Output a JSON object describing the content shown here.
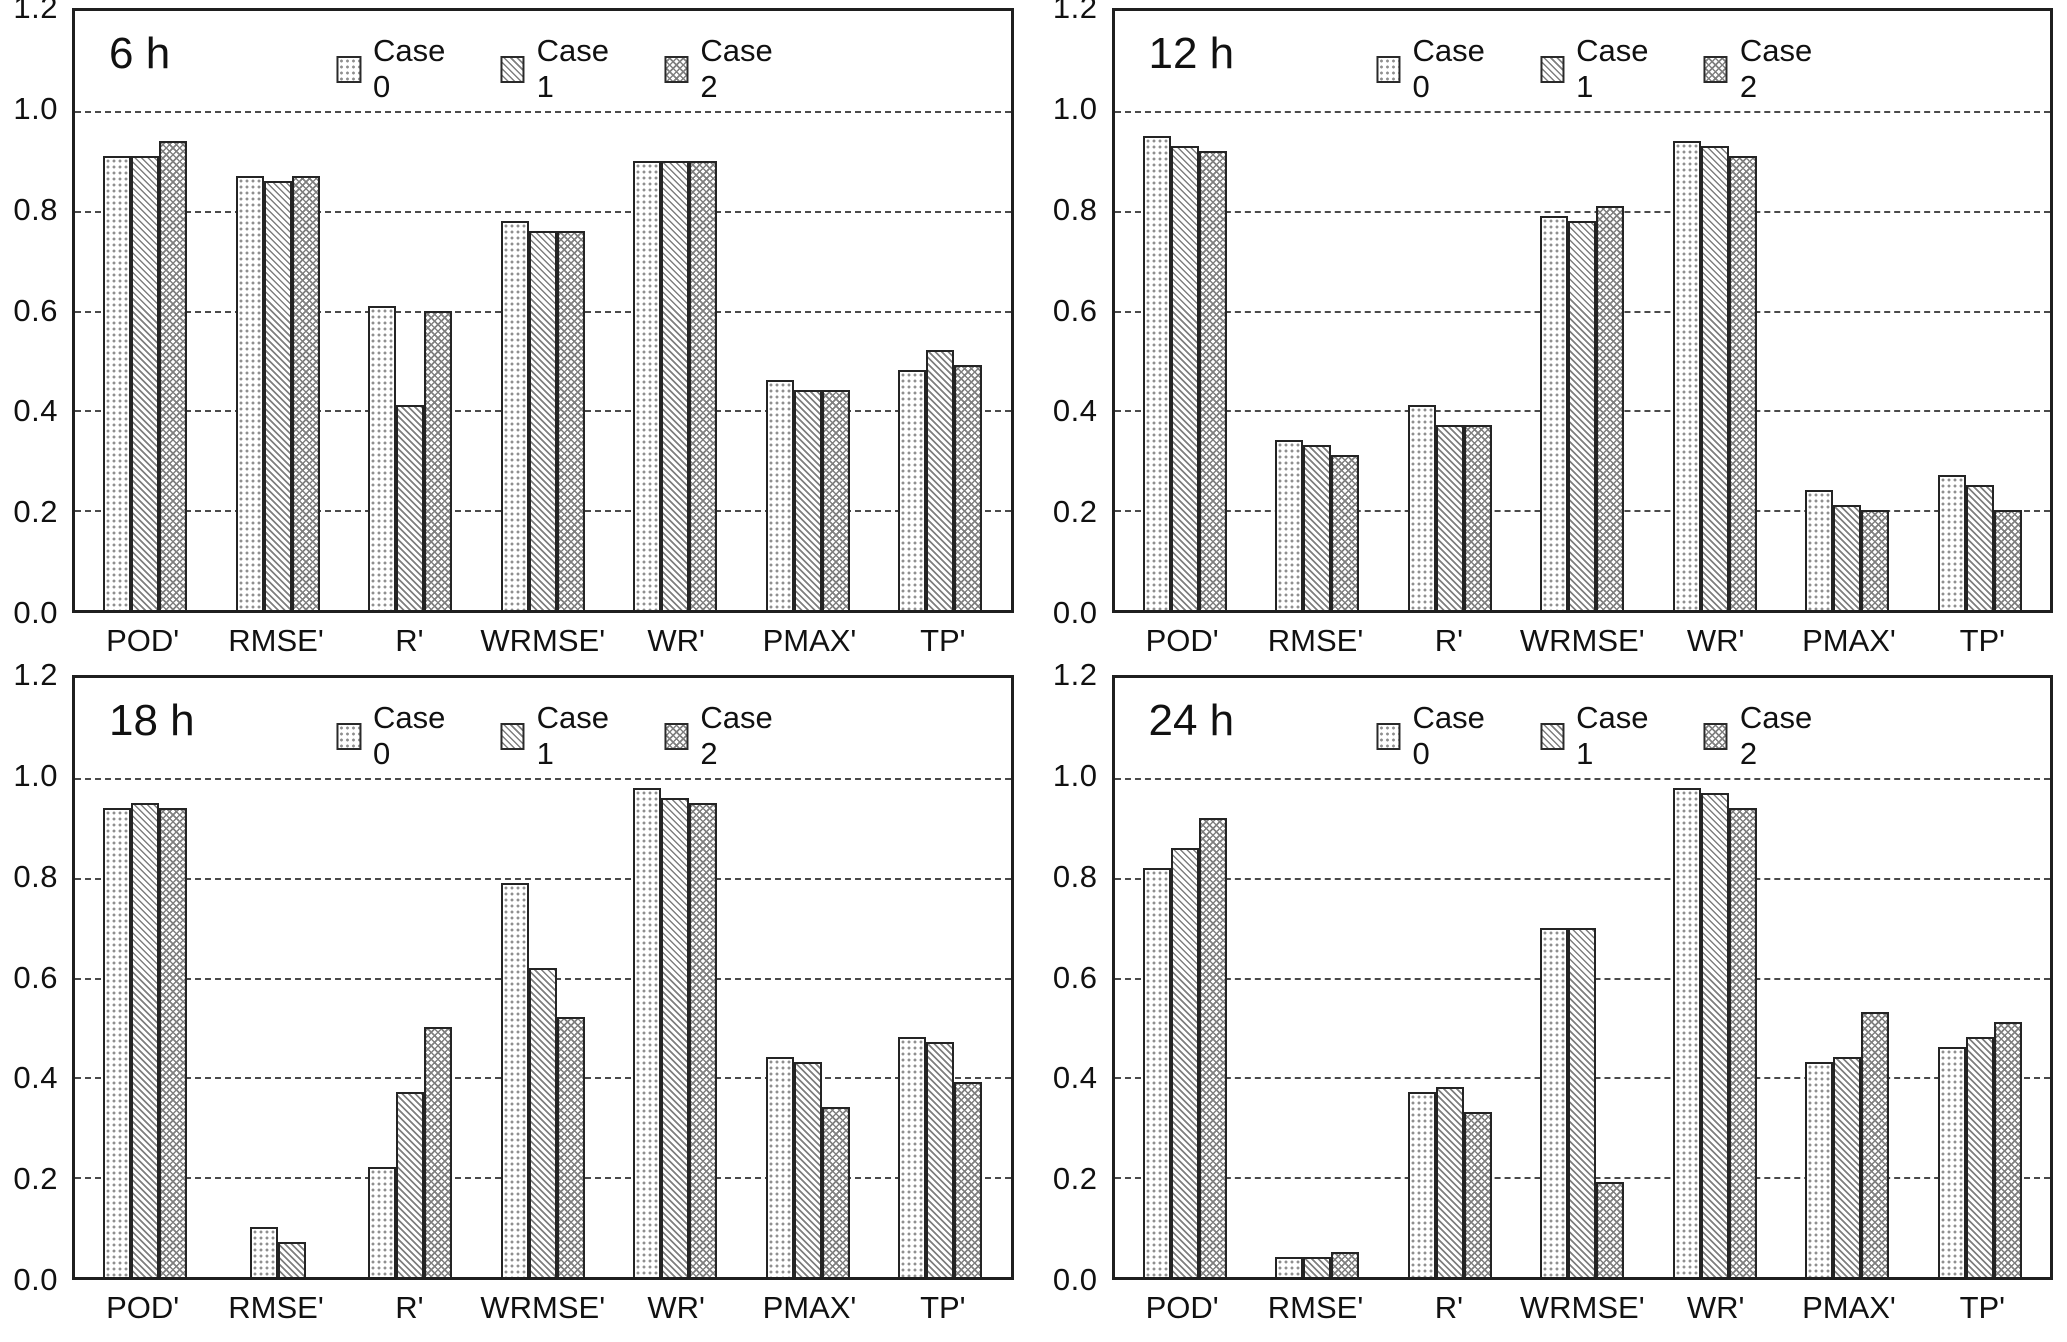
{
  "figure": {
    "description": "2x2 grid of grouped bar charts comparing Case 0, Case 1 and Case 2 across seven verification metrics at four lead times",
    "accent_colors": {
      "bar_outline": "#242424",
      "gridline": "#4a4a4a"
    }
  },
  "chart_data": [
    {
      "type": "bar",
      "title": "6 h",
      "categories": [
        "POD'",
        "RMSE'",
        "R'",
        "WRMSE'",
        "WR'",
        "PMAX'",
        "TP'"
      ],
      "series": [
        {
          "name": "Case 0",
          "pattern": "dots",
          "values": [
            0.91,
            0.87,
            0.61,
            0.78,
            0.9,
            0.46,
            0.48
          ]
        },
        {
          "name": "Case 1",
          "pattern": "diagonal",
          "values": [
            0.91,
            0.86,
            0.41,
            0.76,
            0.9,
            0.44,
            0.52
          ]
        },
        {
          "name": "Case 2",
          "pattern": "crosshatch",
          "values": [
            0.94,
            0.87,
            0.6,
            0.76,
            0.9,
            0.44,
            0.49
          ]
        }
      ],
      "ylim": [
        0,
        1.2
      ],
      "yticks": [
        0.0,
        0.2,
        0.4,
        0.6,
        0.8,
        1.0,
        1.2
      ],
      "grid": "dashed-horizontal",
      "legend_position": "top-inside"
    },
    {
      "type": "bar",
      "title": "12 h",
      "categories": [
        "POD'",
        "RMSE'",
        "R'",
        "WRMSE'",
        "WR'",
        "PMAX'",
        "TP'"
      ],
      "series": [
        {
          "name": "Case 0",
          "pattern": "dots",
          "values": [
            0.95,
            0.34,
            0.41,
            0.79,
            0.94,
            0.24,
            0.27
          ]
        },
        {
          "name": "Case 1",
          "pattern": "diagonal",
          "values": [
            0.93,
            0.33,
            0.37,
            0.78,
            0.93,
            0.21,
            0.25
          ]
        },
        {
          "name": "Case 2",
          "pattern": "crosshatch",
          "values": [
            0.92,
            0.31,
            0.37,
            0.81,
            0.91,
            0.2,
            0.2
          ]
        }
      ],
      "ylim": [
        0,
        1.2
      ],
      "yticks": [
        0.0,
        0.2,
        0.4,
        0.6,
        0.8,
        1.0,
        1.2
      ],
      "grid": "dashed-horizontal",
      "legend_position": "top-inside"
    },
    {
      "type": "bar",
      "title": "18 h",
      "categories": [
        "POD'",
        "RMSE'",
        "R'",
        "WRMSE'",
        "WR'",
        "PMAX'",
        "TP'"
      ],
      "series": [
        {
          "name": "Case 0",
          "pattern": "dots",
          "values": [
            0.94,
            0.1,
            0.22,
            0.79,
            0.98,
            0.44,
            0.48
          ]
        },
        {
          "name": "Case 1",
          "pattern": "diagonal",
          "values": [
            0.95,
            0.07,
            0.37,
            0.62,
            0.96,
            0.43,
            0.47
          ]
        },
        {
          "name": "Case 2",
          "pattern": "crosshatch",
          "values": [
            0.94,
            0.0,
            0.5,
            0.52,
            0.95,
            0.34,
            0.39
          ]
        }
      ],
      "ylim": [
        0,
        1.2
      ],
      "yticks": [
        0.0,
        0.2,
        0.4,
        0.6,
        0.8,
        1.0,
        1.2
      ],
      "grid": "dashed-horizontal",
      "legend_position": "top-inside"
    },
    {
      "type": "bar",
      "title": "24 h",
      "categories": [
        "POD'",
        "RMSE'",
        "R'",
        "WRMSE'",
        "WR'",
        "PMAX'",
        "TP'"
      ],
      "series": [
        {
          "name": "Case 0",
          "pattern": "dots",
          "values": [
            0.82,
            0.04,
            0.37,
            0.7,
            0.98,
            0.43,
            0.46
          ]
        },
        {
          "name": "Case 1",
          "pattern": "diagonal",
          "values": [
            0.86,
            0.04,
            0.38,
            0.7,
            0.97,
            0.44,
            0.48
          ]
        },
        {
          "name": "Case 2",
          "pattern": "crosshatch",
          "values": [
            0.92,
            0.05,
            0.33,
            0.19,
            0.94,
            0.53,
            0.51
          ]
        }
      ],
      "ylim": [
        0,
        1.2
      ],
      "yticks": [
        0.0,
        0.2,
        0.4,
        0.6,
        0.8,
        1.0,
        1.2
      ],
      "grid": "dashed-horizontal",
      "legend_position": "top-inside"
    }
  ]
}
